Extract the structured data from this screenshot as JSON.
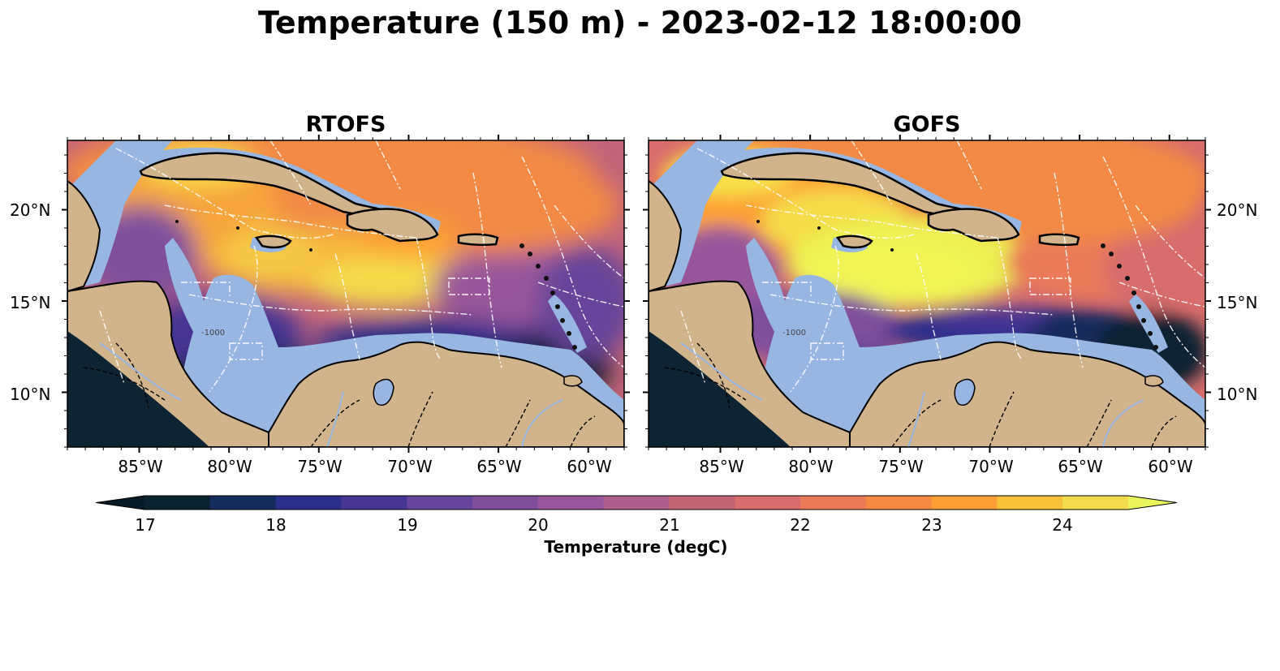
{
  "figure": {
    "title": "Temperature (150 m) - 2023-02-12 18:00:00"
  },
  "panels": [
    {
      "id": "rtofs",
      "title": "RTOFS"
    },
    {
      "id": "gofs",
      "title": "GOFS"
    }
  ],
  "map": {
    "variable": "Temperature",
    "depth_m": 150,
    "lon_range": [
      -89,
      -58
    ],
    "lat_range": [
      7,
      23.8
    ],
    "lon_ticks": [
      "85°W",
      "80°W",
      "75°W",
      "70°W",
      "65°W",
      "60°W"
    ],
    "lat_ticks": [
      "20°N",
      "15°N",
      "10°N"
    ],
    "land_color": "#d2b48c",
    "shallow_water_color": "#98b6e2",
    "contour_label": "-1000"
  },
  "colorbar": {
    "label": "Temperature (degC)",
    "ticks": [
      "17",
      "18",
      "19",
      "20",
      "21",
      "22",
      "23",
      "24"
    ],
    "range": [
      17,
      24.5
    ],
    "colors": [
      "#0b2232",
      "#142c5c",
      "#2b2f8c",
      "#473594",
      "#66449a",
      "#7f4f9c",
      "#98579a",
      "#ae5e8a",
      "#c26474",
      "#d76d6c",
      "#ea7a58",
      "#f78a43",
      "#fca035",
      "#f7c139",
      "#f2dc4b"
    ],
    "extend_low_color": "#071b27",
    "extend_high_color": "#e9f55a"
  }
}
